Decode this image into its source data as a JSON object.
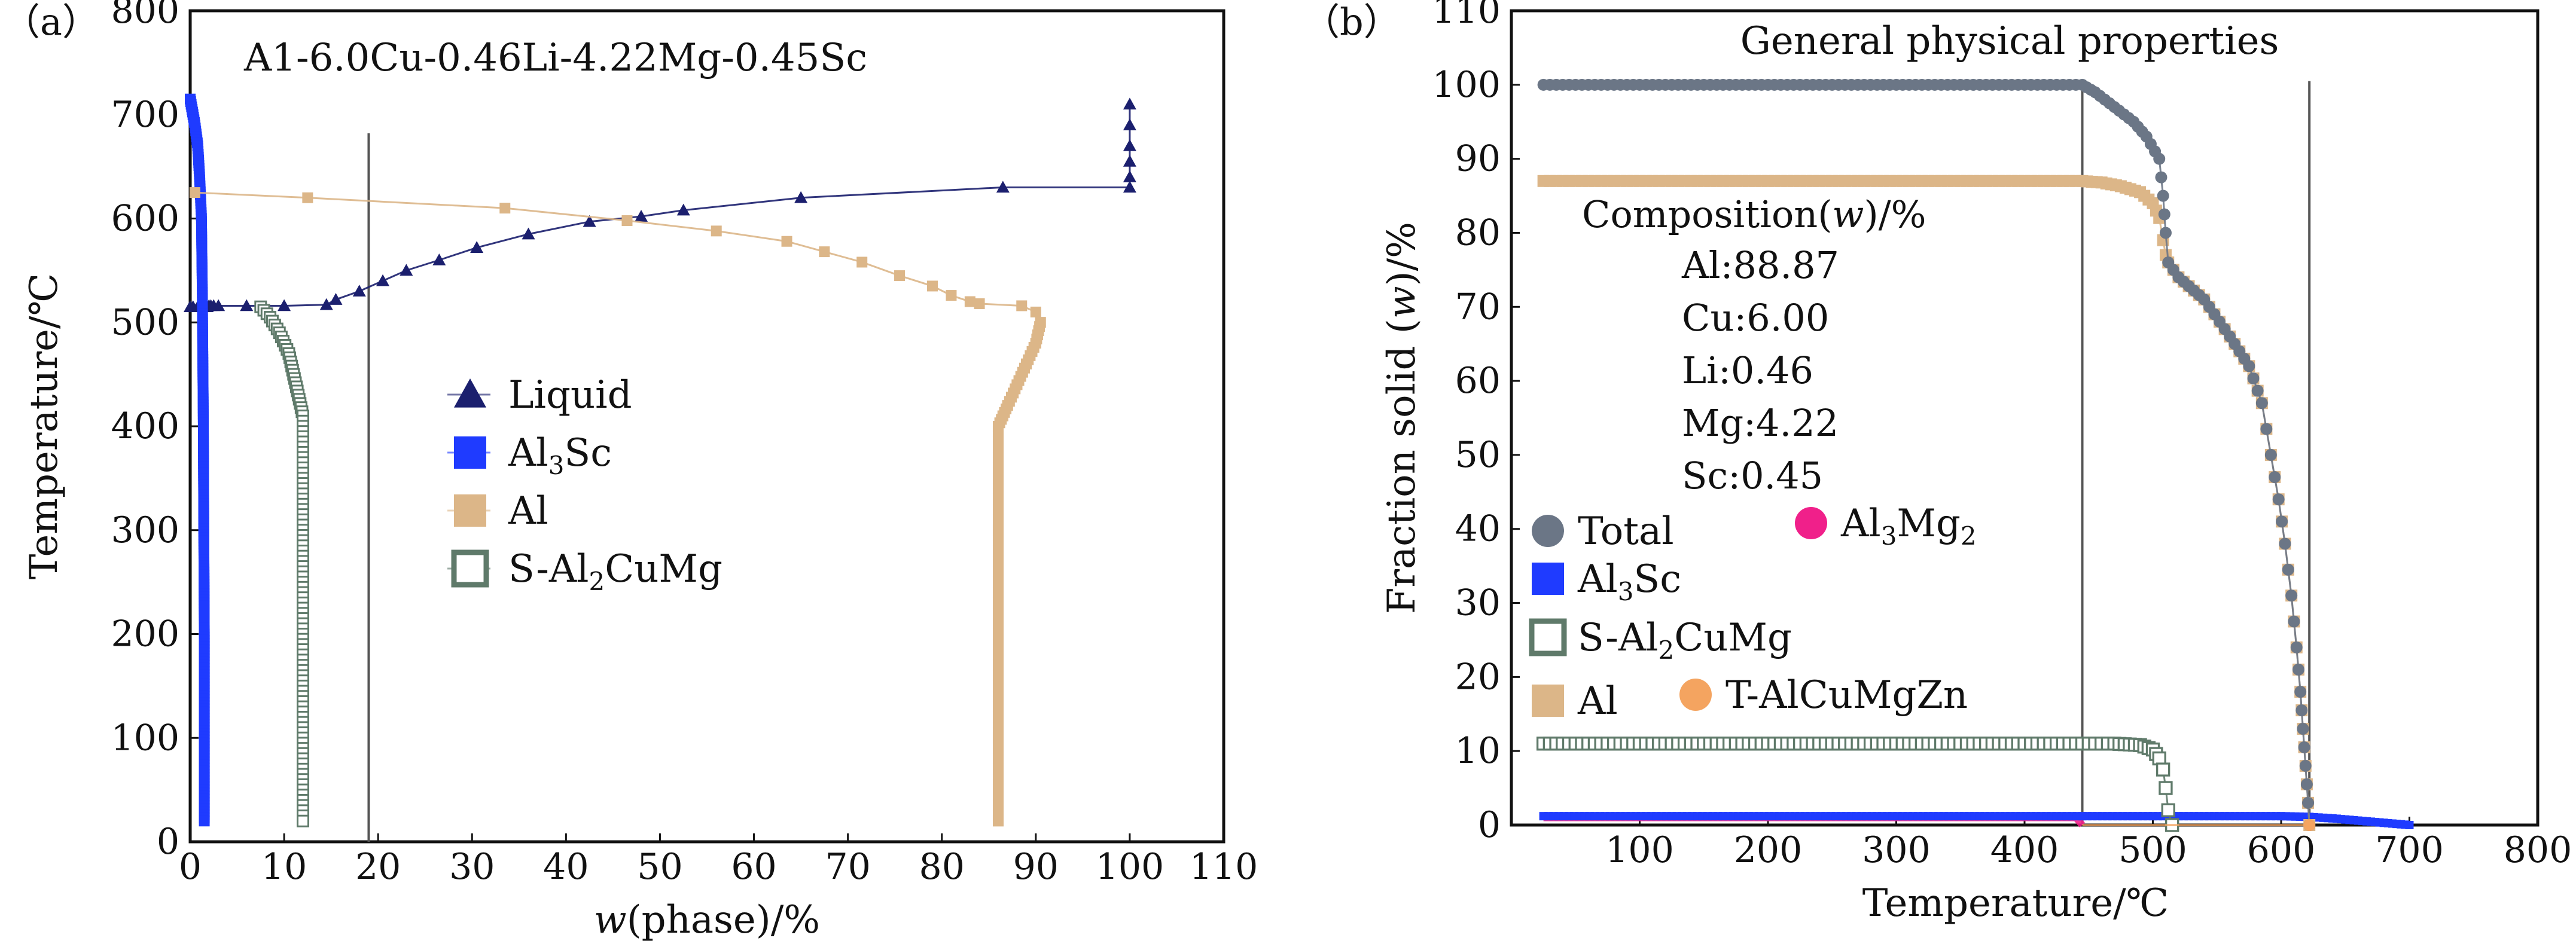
{
  "chart_data": [
    {
      "type": "line",
      "panel_label": "（a）",
      "title": "A1-6.0Cu-0.46Li-4.22Mg-0.45Sc",
      "xlabel_italic": "w",
      "xlabel_rest": "(phase)/%",
      "ylabel": "Temperature/℃",
      "xlim": [
        0,
        110
      ],
      "ylim": [
        0,
        800
      ],
      "xticks": [
        0,
        10,
        20,
        30,
        40,
        50,
        60,
        70,
        80,
        90,
        100,
        110
      ],
      "yticks": [
        0,
        100,
        200,
        300,
        400,
        500,
        600,
        700,
        800
      ],
      "grid": false,
      "vline_x": 19,
      "legend_position": "center",
      "legend": [
        {
          "key": "liquid",
          "parts": [
            {
              "t": "Liquid"
            }
          ]
        },
        {
          "key": "al3sc",
          "parts": [
            {
              "t": "Al"
            },
            {
              "t": "3",
              "sub": true
            },
            {
              "t": "Sc"
            }
          ]
        },
        {
          "key": "al",
          "parts": [
            {
              "t": "Al"
            }
          ]
        },
        {
          "key": "s",
          "parts": [
            {
              "t": "S-Al"
            },
            {
              "t": "2",
              "sub": true
            },
            {
              "t": "CuMg"
            }
          ]
        }
      ],
      "series": [
        {
          "name": "Liquid",
          "key": "liquid",
          "color": "#1b1f6e",
          "marker": "triangle",
          "x": [
            0,
            0.3,
            0.8,
            1.2,
            1.5,
            1.8,
            2.0,
            2.2,
            2.5,
            3.0,
            6.0,
            10.0,
            14.5,
            15.5,
            18.0,
            20.5,
            23.0,
            26.5,
            30.5,
            36.0,
            42.5,
            48.0,
            52.5,
            65.0,
            86.5,
            100.0,
            100.0,
            100.0,
            100.0,
            100.0,
            100.0
          ],
          "y": [
            515,
            515,
            515,
            515,
            515,
            515,
            516,
            516,
            516,
            516,
            516,
            516,
            517,
            522,
            530,
            540,
            550,
            560,
            572,
            585,
            597,
            602,
            608,
            620,
            630,
            630,
            640,
            655,
            670,
            690,
            710
          ]
        },
        {
          "name": "Al3Sc",
          "key": "al3sc",
          "color": "#1f3bff",
          "marker": "square",
          "x": [
            0.0,
            0.2,
            0.5,
            0.8,
            1.0,
            1.2,
            1.3,
            1.4,
            1.5,
            1.5
          ],
          "y": [
            715,
            705,
            690,
            670,
            640,
            600,
            520,
            400,
            200,
            20
          ]
        },
        {
          "name": "Al",
          "key": "al",
          "color": "#dcb688",
          "marker": "square",
          "x": [
            0.5,
            12.5,
            33.5,
            46.5,
            56.0,
            63.5,
            67.5,
            71.5,
            75.5,
            79.0,
            81.0,
            83.0,
            84.0,
            88.5,
            90.0,
            90.5,
            90.0,
            89.0,
            88.0,
            87.0,
            86.5,
            86.0,
            86.0,
            86.0,
            86.0
          ],
          "y": [
            625,
            620,
            610,
            598,
            588,
            578,
            568,
            558,
            545,
            535,
            526,
            520,
            518,
            516,
            510,
            500,
            480,
            460,
            440,
            420,
            410,
            400,
            300,
            100,
            20
          ]
        },
        {
          "name": "S-Al2CuMg",
          "key": "s",
          "color": "#5f7a6a",
          "marker": "open-square",
          "x": [
            7.5,
            8.5,
            9.5,
            10.5,
            11.0,
            11.5,
            12.0,
            12.0,
            12.0,
            12.0,
            12.0
          ],
          "y": [
            515,
            505,
            490,
            470,
            450,
            430,
            410,
            400,
            300,
            100,
            20
          ]
        }
      ]
    },
    {
      "type": "line",
      "panel_label": "（b）",
      "title": "General physical properties",
      "xlabel": "Temperature/℃",
      "ylabel_pre": "Fraction solid (",
      "ylabel_italic": "w",
      "ylabel_post": ")/%",
      "xlim": [
        0,
        800
      ],
      "ylim": [
        0,
        110
      ],
      "xticks": [
        100,
        200,
        300,
        400,
        500,
        600,
        700,
        800
      ],
      "yticks": [
        0,
        10,
        20,
        30,
        40,
        50,
        60,
        70,
        80,
        90,
        100,
        110
      ],
      "grid": false,
      "vlines_x": [
        445,
        622
      ],
      "composition": {
        "heading_pre": "Composition(",
        "heading_italic": "w",
        "heading_post": ")/%",
        "lines": [
          "Al:88.87",
          "Cu:6.00",
          "Li:0.46",
          "Mg:4.22",
          "Sc:0.45"
        ]
      },
      "legend_position": "left",
      "legend": [
        {
          "key": "total",
          "parts": [
            {
              "t": "Total"
            }
          ]
        },
        {
          "key": "al3mg2",
          "parts": [
            {
              "t": "Al"
            },
            {
              "t": "3",
              "sub": true
            },
            {
              "t": "Mg"
            },
            {
              "t": "2",
              "sub": true
            }
          ]
        },
        {
          "key": "al3sc",
          "parts": [
            {
              "t": "Al"
            },
            {
              "t": "3",
              "sub": true
            },
            {
              "t": "Sc"
            }
          ]
        },
        {
          "key": "s",
          "parts": [
            {
              "t": "S-Al"
            },
            {
              "t": "2",
              "sub": true
            },
            {
              "t": "CuMg"
            }
          ]
        },
        {
          "key": "al",
          "parts": [
            {
              "t": "Al"
            }
          ]
        },
        {
          "key": "t",
          "parts": [
            {
              "t": "T-AlCuMgZn"
            }
          ]
        }
      ],
      "series": [
        {
          "name": "Total",
          "key": "total",
          "color": "#6b7686",
          "marker": "circle",
          "x": [
            25,
            445,
            455,
            470,
            485,
            495,
            505,
            508,
            510,
            512,
            520,
            540,
            560,
            575,
            585,
            592,
            598,
            603,
            608,
            612,
            615,
            617,
            619,
            621,
            622
          ],
          "y": [
            100,
            100,
            99,
            97,
            95,
            93,
            90,
            85,
            80,
            76,
            74,
            71,
            66,
            62,
            57,
            50,
            44,
            38,
            31,
            24,
            18,
            13,
            8,
            3,
            0
          ]
        },
        {
          "name": "Al",
          "key": "al",
          "color": "#dcb688",
          "marker": "square",
          "x": [
            25,
            445,
            460,
            475,
            490,
            500,
            505,
            508,
            510,
            512,
            520,
            540,
            560,
            575,
            585,
            592,
            598,
            603,
            608,
            612,
            615,
            617,
            619,
            621,
            622
          ],
          "y": [
            87,
            87,
            86.8,
            86.3,
            85.5,
            84,
            82,
            79,
            77,
            76,
            74,
            71,
            66,
            62,
            57,
            50,
            44,
            38,
            31,
            24,
            18,
            13,
            8,
            3,
            0
          ]
        },
        {
          "name": "S-Al2CuMg",
          "key": "s",
          "color": "#5f7a6a",
          "marker": "open-square",
          "x": [
            25,
            445,
            470,
            490,
            500,
            505,
            508,
            510,
            512,
            515
          ],
          "y": [
            11,
            11,
            11,
            10.8,
            10.2,
            9,
            7.5,
            5,
            2,
            0
          ]
        },
        {
          "name": "Al3Sc",
          "key": "al3sc",
          "color": "#1f3bff",
          "marker": "square",
          "x": [
            25,
            445,
            500,
            560,
            600,
            622,
            640,
            660,
            680,
            700
          ],
          "y": [
            1.2,
            1.2,
            1.2,
            1.2,
            1.2,
            1.1,
            0.9,
            0.6,
            0.3,
            0
          ]
        },
        {
          "name": "Al3Mg2",
          "key": "al3mg2",
          "color": "#f0208a",
          "marker": "circle",
          "x": [
            25,
            100,
            200,
            300,
            400,
            440,
            445
          ],
          "y": [
            1.0,
            1.0,
            1.0,
            1.0,
            1.0,
            1.0,
            0
          ]
        },
        {
          "name": "T-AlCuMgZn",
          "key": "t",
          "color": "#f4a460",
          "marker": "circle",
          "x": [
            445,
            622
          ],
          "y": [
            0,
            0
          ]
        }
      ]
    }
  ]
}
